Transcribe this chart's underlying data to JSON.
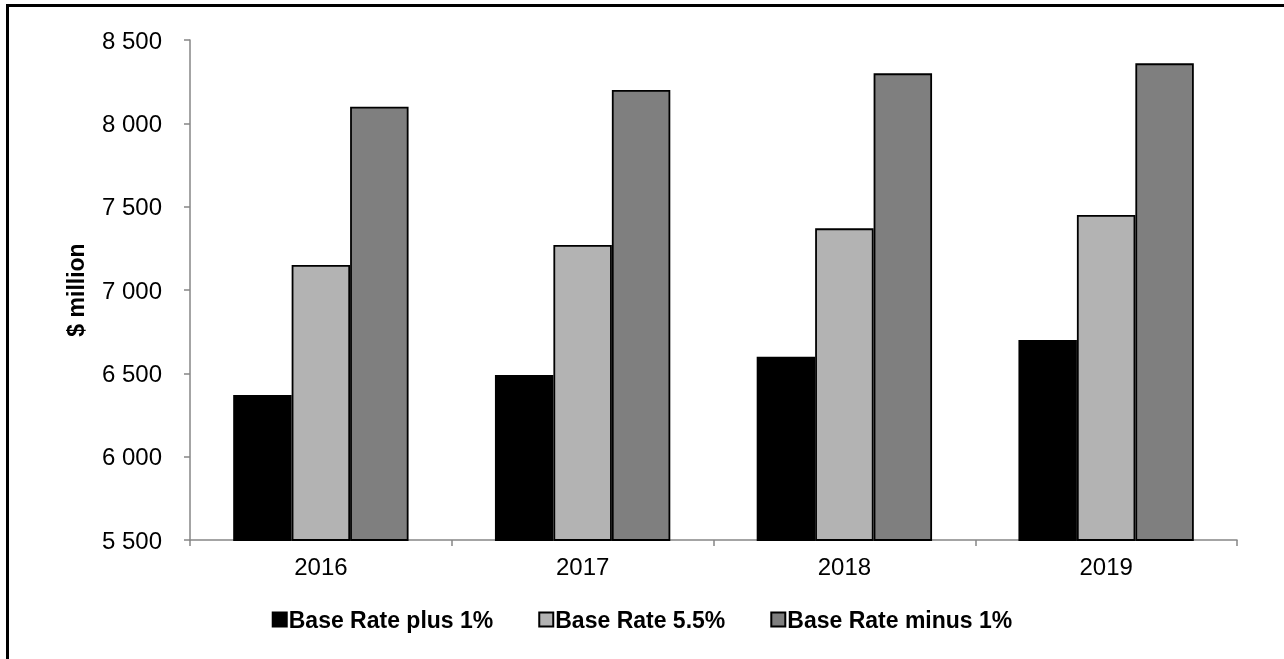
{
  "chart_data": {
    "type": "bar",
    "ylabel": "$ million",
    "categories": [
      "2016",
      "2017",
      "2018",
      "2019"
    ],
    "series": [
      {
        "name": "Base Rate plus 1%",
        "color": "#000000",
        "values": [
          6370,
          6490,
          6600,
          6700
        ]
      },
      {
        "name": "Base Rate 5.5%",
        "color": "#b3b3b3",
        "values": [
          7150,
          7270,
          7370,
          7450
        ]
      },
      {
        "name": "Base Rate minus 1%",
        "color": "#7f7f7f",
        "values": [
          8100,
          8200,
          8300,
          8360
        ]
      }
    ],
    "ylim": [
      5500,
      8500
    ],
    "yticks": [
      {
        "value": 5500,
        "label": "5 500"
      },
      {
        "value": 6000,
        "label": "6 000"
      },
      {
        "value": 6500,
        "label": "6 500"
      },
      {
        "value": 7000,
        "label": "7 000"
      },
      {
        "value": 7500,
        "label": "7 500"
      },
      {
        "value": 8000,
        "label": "8 000"
      },
      {
        "value": 8500,
        "label": "8 500"
      }
    ],
    "grid": false,
    "legend": "bottom"
  }
}
